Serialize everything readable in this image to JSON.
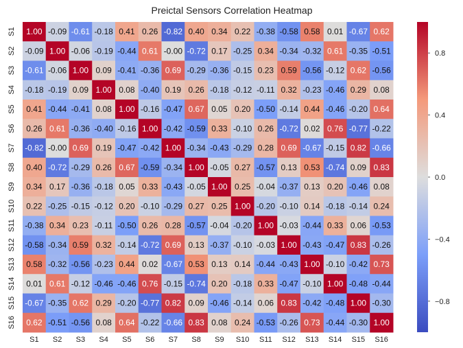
{
  "chart_data": {
    "type": "heatmap",
    "title": "Preictal Sensors Correlation Heatmap",
    "xlabel": "",
    "ylabel": "",
    "x_categories": [
      "S1",
      "S2",
      "S3",
      "S4",
      "S5",
      "S6",
      "S7",
      "S8",
      "S9",
      "S10",
      "S11",
      "S12",
      "S13",
      "S14",
      "S15",
      "S16"
    ],
    "y_categories": [
      "S1",
      "S2",
      "S3",
      "S4",
      "S5",
      "S6",
      "S7",
      "S8",
      "S9",
      "S10",
      "S11",
      "S12",
      "S13",
      "S14",
      "S15",
      "S16"
    ],
    "values": [
      [
        1.0,
        -0.09,
        -0.61,
        -0.18,
        0.41,
        0.26,
        -0.82,
        0.4,
        0.34,
        0.22,
        -0.38,
        -0.58,
        0.58,
        0.01,
        -0.67,
        0.62
      ],
      [
        -0.09,
        1.0,
        -0.06,
        -0.19,
        -0.44,
        0.61,
        -0.0,
        -0.72,
        0.17,
        -0.25,
        0.34,
        -0.34,
        -0.32,
        0.61,
        -0.35,
        -0.51
      ],
      [
        -0.61,
        -0.06,
        1.0,
        0.09,
        -0.41,
        -0.36,
        0.69,
        -0.29,
        -0.36,
        -0.15,
        0.23,
        0.59,
        -0.56,
        -0.12,
        0.62,
        -0.56
      ],
      [
        -0.18,
        -0.19,
        0.09,
        1.0,
        0.08,
        -0.4,
        0.19,
        0.26,
        -0.18,
        -0.12,
        -0.11,
        0.32,
        -0.23,
        -0.46,
        0.29,
        0.08
      ],
      [
        0.41,
        -0.44,
        -0.41,
        0.08,
        1.0,
        -0.16,
        -0.47,
        0.67,
        0.05,
        0.2,
        -0.5,
        -0.14,
        0.44,
        -0.46,
        -0.2,
        0.64
      ],
      [
        0.26,
        0.61,
        -0.36,
        -0.4,
        -0.16,
        1.0,
        -0.42,
        -0.59,
        0.33,
        -0.1,
        0.26,
        -0.72,
        0.02,
        0.76,
        -0.77,
        -0.22
      ],
      [
        -0.82,
        -0.0,
        0.69,
        0.19,
        -0.47,
        -0.42,
        1.0,
        -0.34,
        -0.43,
        -0.29,
        0.28,
        0.69,
        -0.67,
        -0.15,
        0.82,
        -0.66
      ],
      [
        0.4,
        -0.72,
        -0.29,
        0.26,
        0.67,
        -0.59,
        -0.34,
        1.0,
        -0.05,
        0.27,
        -0.57,
        0.13,
        0.53,
        -0.74,
        0.09,
        0.83
      ],
      [
        0.34,
        0.17,
        -0.36,
        -0.18,
        0.05,
        0.33,
        -0.43,
        -0.05,
        1.0,
        0.25,
        -0.04,
        -0.37,
        0.13,
        0.2,
        -0.46,
        0.08
      ],
      [
        0.22,
        -0.25,
        -0.15,
        -0.12,
        0.2,
        -0.1,
        -0.29,
        0.27,
        0.25,
        1.0,
        -0.2,
        -0.1,
        0.14,
        -0.18,
        -0.14,
        0.24
      ],
      [
        -0.38,
        0.34,
        0.23,
        -0.11,
        -0.5,
        0.26,
        0.28,
        -0.57,
        -0.04,
        -0.2,
        1.0,
        -0.03,
        -0.44,
        0.33,
        0.06,
        -0.53
      ],
      [
        -0.58,
        -0.34,
        0.59,
        0.32,
        -0.14,
        -0.72,
        0.69,
        0.13,
        -0.37,
        -0.1,
        -0.03,
        1.0,
        -0.43,
        -0.47,
        0.83,
        -0.26
      ],
      [
        0.58,
        -0.32,
        -0.56,
        -0.23,
        0.44,
        0.02,
        -0.67,
        0.53,
        0.13,
        0.14,
        -0.44,
        -0.43,
        1.0,
        -0.1,
        -0.42,
        0.73
      ],
      [
        0.01,
        0.61,
        -0.12,
        -0.46,
        -0.46,
        0.76,
        -0.15,
        -0.74,
        0.2,
        -0.18,
        0.33,
        -0.47,
        -0.1,
        1.0,
        -0.48,
        -0.44
      ],
      [
        -0.67,
        -0.35,
        0.62,
        0.29,
        -0.2,
        -0.77,
        0.82,
        0.09,
        -0.46,
        -0.14,
        0.06,
        0.83,
        -0.42,
        -0.48,
        1.0,
        -0.3
      ],
      [
        0.62,
        -0.51,
        -0.56,
        0.08,
        0.64,
        -0.22,
        -0.66,
        0.83,
        0.08,
        0.24,
        -0.53,
        -0.26,
        0.73,
        -0.44,
        -0.3,
        1.0
      ]
    ],
    "colorbar": {
      "vmin": -1.0,
      "vmax": 1.0,
      "ticks": [
        0.8,
        0.4,
        0.0,
        -0.4,
        -0.8
      ],
      "tick_labels": [
        "0.8",
        "0.4",
        "0.0",
        "−0.4",
        "−0.8"
      ],
      "colormap": "coolwarm"
    }
  }
}
